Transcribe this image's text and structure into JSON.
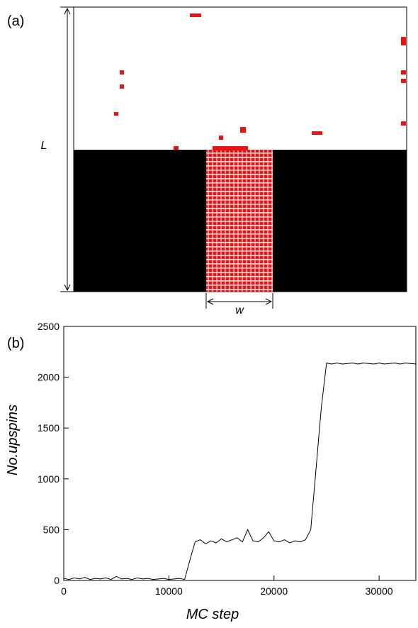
{
  "panel_a": {
    "label": "(a)",
    "height_label": "L",
    "width_label": "w"
  },
  "chart_data": {
    "type": "line",
    "panel_label": "(b)",
    "x_label": "MC step",
    "y_label": "No.upspins",
    "color": "#000000",
    "x": [
      0,
      500,
      1000,
      1500,
      2000,
      2500,
      3000,
      3500,
      4000,
      4500,
      5000,
      5500,
      6000,
      6500,
      7000,
      7500,
      8000,
      8500,
      9000,
      9500,
      10000,
      10500,
      11000,
      11500,
      12000,
      12500,
      13000,
      13500,
      14000,
      14500,
      15000,
      15500,
      16000,
      16500,
      17000,
      17500,
      18000,
      18500,
      19000,
      19500,
      20000,
      20500,
      21000,
      21500,
      22000,
      22500,
      23000,
      23500,
      24000,
      24500,
      25000,
      25500,
      26000,
      26500,
      27000,
      27500,
      28000,
      28500,
      29000,
      29500,
      30000,
      30500,
      31000,
      31500,
      32000,
      32500,
      33000,
      33500
    ],
    "values": [
      20,
      10,
      25,
      15,
      30,
      10,
      20,
      15,
      25,
      10,
      40,
      15,
      20,
      10,
      25,
      15,
      20,
      10,
      15,
      20,
      10,
      15,
      20,
      10,
      200,
      380,
      400,
      360,
      390,
      370,
      410,
      380,
      400,
      420,
      380,
      500,
      390,
      380,
      420,
      480,
      390,
      380,
      400,
      370,
      390,
      380,
      400,
      500,
      1100,
      1700,
      2140,
      2130,
      2140,
      2130,
      2135,
      2140,
      2130,
      2140,
      2135,
      2130,
      2140,
      2130,
      2135,
      2140,
      2130,
      2140,
      2135,
      2130
    ],
    "xlim": [
      0,
      33500
    ],
    "ylim": [
      0,
      2500
    ],
    "xticks": [
      0,
      10000,
      20000,
      30000
    ],
    "yticks": [
      0,
      500,
      1000,
      1500,
      2000,
      2500
    ]
  }
}
